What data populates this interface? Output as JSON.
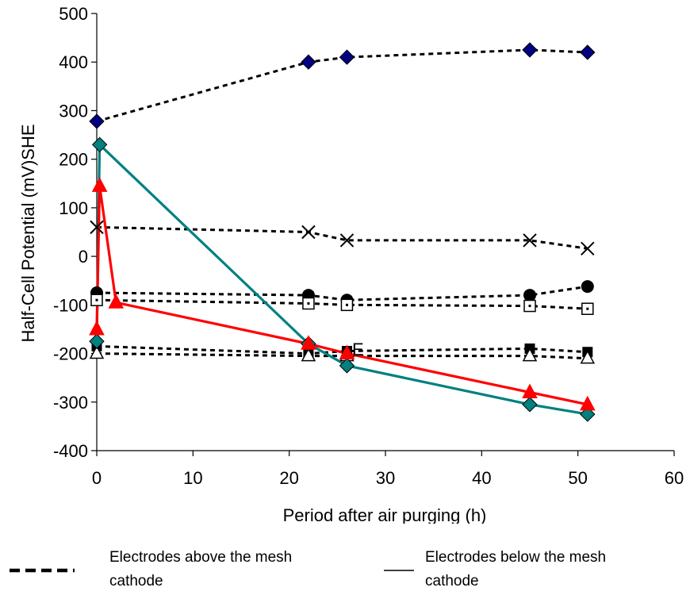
{
  "chart_data": {
    "type": "line",
    "title": "",
    "xlabel": "Period after air purging (h)",
    "ylabel": "Half-Cell Potential (mV)SHE",
    "xlim": [
      0,
      60
    ],
    "ylim": [
      -400,
      500
    ],
    "xticks": [
      "0",
      "10",
      "20",
      "30",
      "40",
      "50",
      "60"
    ],
    "yticks": [
      "500",
      "400",
      "300",
      "200",
      "100",
      "0",
      "-100",
      "-200",
      "-300",
      "-400"
    ],
    "grid": false,
    "annotation": "E",
    "series": [
      {
        "marker": "diamond",
        "line": "dashed",
        "color": "#000080",
        "x": [
          0,
          22,
          26,
          45,
          51
        ],
        "y": [
          278,
          400,
          410,
          425,
          420
        ]
      },
      {
        "marker": "x",
        "line": "dashed",
        "color": "#000000",
        "x": [
          0,
          22,
          26,
          45,
          51
        ],
        "y": [
          60,
          50,
          33,
          33,
          16
        ]
      },
      {
        "marker": "circle",
        "line": "dashed",
        "color": "#000000",
        "x": [
          0,
          22,
          26,
          45,
          51
        ],
        "y": [
          -75,
          -80,
          -90,
          -80,
          -62
        ]
      },
      {
        "marker": "square-dot",
        "line": "dashed",
        "color": "#000000",
        "x": [
          0,
          22,
          26,
          45,
          51
        ],
        "y": [
          -90,
          -97,
          -100,
          -102,
          -108
        ]
      },
      {
        "marker": "square",
        "line": "dashed",
        "color": "#000000",
        "x": [
          0,
          22,
          26,
          45,
          51
        ],
        "y": [
          -185,
          -200,
          -195,
          -190,
          -197
        ]
      },
      {
        "marker": "triangle-open",
        "line": "dashed",
        "color": "#000000",
        "x": [
          0,
          22,
          26,
          45,
          51
        ],
        "y": [
          -200,
          -205,
          -205,
          -205,
          -210
        ]
      },
      {
        "marker": "diamond",
        "line": "solid",
        "color": "#008080",
        "x": [
          0,
          0.3,
          22,
          26,
          45,
          51
        ],
        "y": [
          -175,
          230,
          -180,
          -225,
          -305,
          -325
        ]
      },
      {
        "marker": "triangle",
        "line": "solid",
        "color": "#ff0000",
        "x": [
          0,
          0.3,
          2,
          22,
          26,
          45,
          51
        ],
        "y": [
          -150,
          145,
          -95,
          -180,
          -200,
          -280,
          -305
        ]
      }
    ]
  },
  "legend": {
    "above_label": "Electrodes above the mesh cathode",
    "below_label": "Electrodes below  the mesh cathode"
  }
}
